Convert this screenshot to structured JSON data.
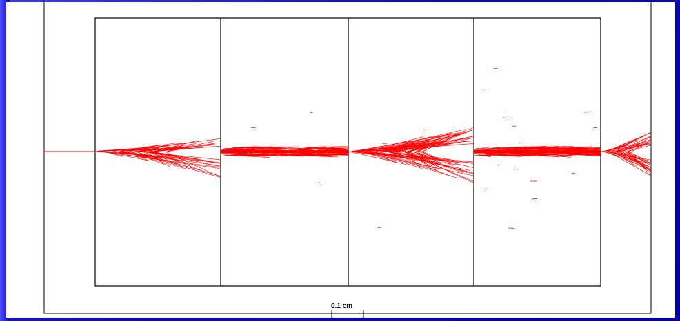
{
  "figure": {
    "scale_bar_label": "0.1 cm",
    "panel_count": 4,
    "colors": {
      "background": "#1a1ad0",
      "panel": "#ffffff",
      "frame": "#000000",
      "crack_lines": "#ff0000"
    }
  }
}
